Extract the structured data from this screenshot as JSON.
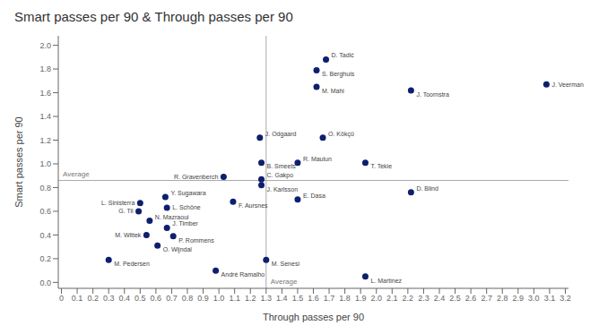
{
  "chart_data": {
    "type": "scatter",
    "title": "Smart passes per 90 & Through passes per 90",
    "xlabel": "Through passes per 90",
    "ylabel": "Smart passes per 90",
    "color": "#0d1f6e",
    "grid": false,
    "xlim": [
      -0.02,
      3.22
    ],
    "ylim": [
      -0.05,
      2.08
    ],
    "xticks": [
      0,
      0.1,
      0.2,
      0.3,
      0.4,
      0.5,
      0.6,
      0.7,
      0.8,
      0.9,
      {
        "value": 1,
        "label": "1.0"
      },
      1.1,
      1.2,
      1.3,
      1.4,
      1.5,
      1.6,
      1.7,
      1.8,
      1.9,
      {
        "value": 2,
        "label": "2.0"
      },
      2.1,
      2.2,
      2.3,
      2.4,
      2.5,
      2.6,
      2.7,
      2.8,
      2.9,
      {
        "value": 3,
        "label": "3.0"
      },
      3.1,
      3.2
    ],
    "yticks": [
      {
        "value": 0,
        "label": "0.0"
      },
      0.2,
      0.4,
      0.6,
      0.8,
      {
        "value": 1,
        "label": "1.0"
      },
      1.2,
      1.4,
      1.6,
      1.8,
      {
        "value": 2,
        "label": "2.0"
      }
    ],
    "reference_lines": [
      {
        "x": 1.3,
        "label": "Average"
      },
      {
        "y": 0.86,
        "label": "Average"
      }
    ],
    "labels": [
      "D. Tadić",
      "S. Berghuis",
      "M. Mahi",
      "J. Toornstra",
      "J. Veerman",
      "J. Odgaard",
      "O. Kökçü",
      "B. Smeets",
      "R. Maulun",
      "T. Tekie",
      "R. Gravenberch",
      "C. Gakpo",
      "J. Karlsson",
      "D. Blind",
      "L. Sinisterra",
      "Y. Sugawara",
      "G. Til",
      "L. Schöne",
      "F. Aursnes",
      "E. Dasa",
      "N. Mazraoui",
      "J. Timber",
      "M. Wittek",
      "P. Rommens",
      "O. Wijndal",
      "M. Pedersen",
      "André Ramalho",
      "M. Senesi",
      "L. Martinez"
    ],
    "x": [
      1.68,
      1.62,
      1.62,
      2.22,
      3.08,
      1.26,
      1.66,
      1.27,
      1.5,
      1.93,
      1.03,
      1.27,
      1.27,
      2.22,
      0.5,
      0.66,
      0.49,
      0.67,
      1.09,
      1.5,
      0.56,
      0.67,
      0.54,
      0.71,
      0.61,
      0.3,
      0.98,
      1.3,
      1.93
    ],
    "values": [
      1.88,
      1.79,
      1.65,
      1.62,
      1.67,
      1.22,
      1.22,
      1.01,
      1.01,
      1.01,
      0.89,
      0.87,
      0.82,
      0.76,
      0.67,
      0.72,
      0.6,
      0.63,
      0.68,
      0.7,
      0.52,
      0.46,
      0.4,
      0.39,
      0.31,
      0.19,
      0.1,
      0.19,
      0.05
    ]
  }
}
